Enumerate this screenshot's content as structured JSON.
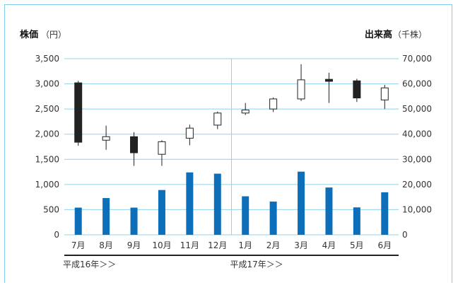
{
  "chart_data": {
    "type": "candlestick+bar",
    "left_axis": {
      "title": "株価",
      "unit": "（円）",
      "ticks": [
        "3,500",
        "3,000",
        "2,500",
        "2,000",
        "1,500",
        "1,000",
        "500",
        "0"
      ],
      "ylim": [
        0,
        3500
      ]
    },
    "right_axis": {
      "title": "出来高",
      "unit": "（千株）",
      "ticks": [
        "70,000",
        "60,000",
        "50,000",
        "40,000",
        "30,000",
        "20,000",
        "10,000",
        "0"
      ],
      "ylim": [
        0,
        70000
      ]
    },
    "categories": [
      "7月",
      "8月",
      "9月",
      "10月",
      "11月",
      "12月",
      "1月",
      "2月",
      "3月",
      "4月",
      "5月",
      "6月"
    ],
    "period_labels": [
      {
        "text": "平成16年＞＞",
        "start_index": 0
      },
      {
        "text": "平成17年＞＞",
        "start_index": 6
      }
    ],
    "candles": [
      {
        "open": 3020,
        "high": 3060,
        "low": 1770,
        "close": 1840
      },
      {
        "open": 1880,
        "high": 2170,
        "low": 1690,
        "close": 1950
      },
      {
        "open": 1950,
        "high": 2040,
        "low": 1370,
        "close": 1630
      },
      {
        "open": 1600,
        "high": 1880,
        "low": 1370,
        "close": 1850
      },
      {
        "open": 1920,
        "high": 2190,
        "low": 1780,
        "close": 2120
      },
      {
        "open": 2180,
        "high": 2450,
        "low": 2100,
        "close": 2420
      },
      {
        "open": 2420,
        "high": 2620,
        "low": 2380,
        "close": 2480
      },
      {
        "open": 2500,
        "high": 2730,
        "low": 2440,
        "close": 2700
      },
      {
        "open": 2700,
        "high": 3390,
        "low": 2660,
        "close": 3080
      },
      {
        "open": 3090,
        "high": 3220,
        "low": 2620,
        "close": 3050
      },
      {
        "open": 3060,
        "high": 3100,
        "low": 2640,
        "close": 2720
      },
      {
        "open": 2680,
        "high": 2980,
        "low": 2500,
        "close": 2920
      }
    ],
    "volume": [
      10800,
      14600,
      10800,
      17800,
      24800,
      24300,
      15300,
      13200,
      25100,
      18800,
      10900,
      16900
    ],
    "colors": {
      "up": "#ffffff",
      "down": "#222222",
      "bar": "#0d6fba",
      "grid": "#8fd3ec",
      "frame": "#7fcde6"
    }
  }
}
